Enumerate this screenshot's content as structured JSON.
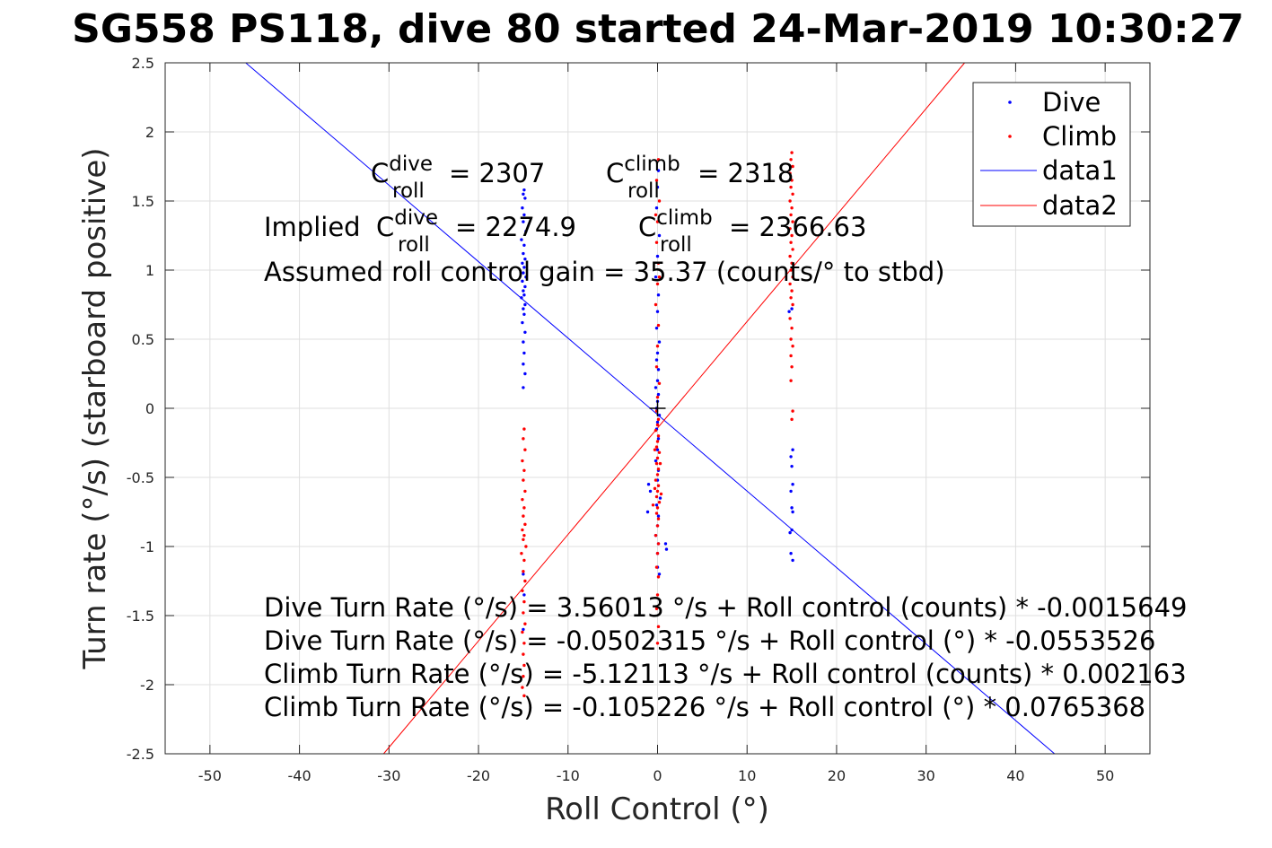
{
  "chart_data": {
    "type": "scatter",
    "title": "SG558 PS118, dive 80 started 24-Mar-2019 10:30:27",
    "xlabel": "Roll Control (°)",
    "ylabel": "Turn rate (°/s) (starboard positive)",
    "xlim": [
      -55,
      55
    ],
    "ylim": [
      -2.5,
      2.5
    ],
    "x_ticks": [
      "-50",
      "-40",
      "-30",
      "-20",
      "-10",
      "0",
      "10",
      "20",
      "30",
      "40",
      "50"
    ],
    "y_ticks": [
      "2.5",
      "2",
      "1.5",
      "1",
      "0.5",
      "0",
      "-0.5",
      "-1",
      "-1.5",
      "-2",
      "-2.5"
    ],
    "grid": true,
    "legend_position": "top-right",
    "series": [
      {
        "name": "Dive",
        "style": "points",
        "color": "#0000ff",
        "points": [
          [
            -14.9,
            1.58
          ],
          [
            -15.0,
            1.55
          ],
          [
            -14.8,
            1.52
          ],
          [
            -15.1,
            1.45
          ],
          [
            -14.9,
            1.4
          ],
          [
            -15.0,
            1.35
          ],
          [
            -14.7,
            1.28
          ],
          [
            -15.2,
            1.22
          ],
          [
            -14.9,
            1.18
          ],
          [
            -15.0,
            1.12
          ],
          [
            -14.8,
            1.08
          ],
          [
            -15.1,
            1.05
          ],
          [
            -14.9,
            1.02
          ],
          [
            -15.0,
            0.98
          ],
          [
            -14.7,
            0.95
          ],
          [
            -15.1,
            0.92
          ],
          [
            -14.8,
            0.88
          ],
          [
            -15.0,
            0.85
          ],
          [
            -14.9,
            0.82
          ],
          [
            -15.2,
            0.8
          ],
          [
            -14.8,
            0.75
          ],
          [
            -15.0,
            0.72
          ],
          [
            -14.9,
            0.68
          ],
          [
            -15.1,
            0.62
          ],
          [
            -14.8,
            0.55
          ],
          [
            -15.0,
            0.48
          ],
          [
            -14.9,
            0.4
          ],
          [
            -15.0,
            0.32
          ],
          [
            -14.8,
            0.25
          ],
          [
            -15.0,
            0.15
          ],
          [
            -15.0,
            -1.2
          ],
          [
            -14.9,
            -1.35
          ],
          [
            -15.0,
            -1.6
          ],
          [
            0.1,
            1.72
          ],
          [
            0.0,
            1.6
          ],
          [
            -0.1,
            1.45
          ],
          [
            0.2,
            1.25
          ],
          [
            0.0,
            1.1
          ],
          [
            -0.2,
            0.95
          ],
          [
            0.1,
            0.82
          ],
          [
            0.0,
            0.7
          ],
          [
            -0.1,
            0.58
          ],
          [
            0.2,
            0.48
          ],
          [
            0.0,
            0.4
          ],
          [
            -0.1,
            0.35
          ],
          [
            0.1,
            0.28
          ],
          [
            0.0,
            0.2
          ],
          [
            -0.2,
            0.15
          ],
          [
            0.1,
            0.1
          ],
          [
            0.0,
            0.05
          ],
          [
            -0.1,
            0.0
          ],
          [
            0.2,
            -0.05
          ],
          [
            0.0,
            -0.1
          ],
          [
            -0.1,
            -0.15
          ],
          [
            0.1,
            -0.22
          ],
          [
            0.0,
            -0.3
          ],
          [
            -0.2,
            -0.38
          ],
          [
            0.1,
            -0.45
          ],
          [
            0.0,
            -0.52
          ],
          [
            -1.0,
            -0.55
          ],
          [
            -0.8,
            -0.6
          ],
          [
            0.3,
            -0.65
          ],
          [
            -0.1,
            -0.7
          ],
          [
            0.1,
            -0.78
          ],
          [
            0.0,
            -0.85
          ],
          [
            -0.2,
            -0.92
          ],
          [
            0.1,
            -0.98
          ],
          [
            0.0,
            -1.05
          ],
          [
            1.0,
            -1.02
          ],
          [
            0.9,
            -0.98
          ],
          [
            -1.1,
            -0.75
          ],
          [
            0.0,
            -1.15
          ],
          [
            0.2,
            -1.2
          ],
          [
            15.1,
            -0.3
          ],
          [
            14.9,
            -0.35
          ],
          [
            15.0,
            -0.42
          ],
          [
            15.1,
            -0.55
          ],
          [
            14.9,
            -0.6
          ],
          [
            15.0,
            -0.72
          ],
          [
            15.1,
            -0.75
          ],
          [
            14.8,
            -0.9
          ],
          [
            15.0,
            -0.88
          ],
          [
            14.9,
            -1.05
          ],
          [
            15.1,
            -1.1
          ],
          [
            14.7,
            0.7
          ],
          [
            15.0,
            0.72
          ]
        ]
      },
      {
        "name": "Climb",
        "style": "points",
        "color": "#ff0000",
        "points": [
          [
            -14.9,
            -0.15
          ],
          [
            -15.0,
            -0.22
          ],
          [
            -14.8,
            -0.3
          ],
          [
            -15.1,
            -0.38
          ],
          [
            -14.9,
            -0.45
          ],
          [
            -15.0,
            -0.52
          ],
          [
            -14.8,
            -0.6
          ],
          [
            -15.1,
            -0.66
          ],
          [
            -14.9,
            -0.72
          ],
          [
            -15.0,
            -0.78
          ],
          [
            -14.8,
            -0.84
          ],
          [
            -15.1,
            -0.88
          ],
          [
            -14.9,
            -0.92
          ],
          [
            -15.0,
            -0.95
          ],
          [
            -14.7,
            -1.0
          ],
          [
            -15.2,
            -1.05
          ],
          [
            -14.9,
            -1.1
          ],
          [
            -15.0,
            -1.18
          ],
          [
            -14.8,
            -1.25
          ],
          [
            -15.1,
            -1.32
          ],
          [
            -14.9,
            -1.4
          ],
          [
            -15.0,
            -1.48
          ],
          [
            -14.8,
            -1.56
          ],
          [
            -15.1,
            -1.62
          ],
          [
            -14.9,
            -1.7
          ],
          [
            -15.0,
            -1.78
          ],
          [
            -14.9,
            -1.86
          ],
          [
            -15.0,
            -1.94
          ],
          [
            -15.1,
            -2.02
          ],
          [
            -14.9,
            -2.08
          ],
          [
            0.1,
            1.8
          ],
          [
            -0.1,
            1.65
          ],
          [
            0.2,
            1.5
          ],
          [
            0.0,
            1.35
          ],
          [
            -0.1,
            1.2
          ],
          [
            0.1,
            1.05
          ],
          [
            0.0,
            0.9
          ],
          [
            -0.2,
            0.75
          ],
          [
            0.1,
            0.6
          ],
          [
            0.0,
            0.45
          ],
          [
            -0.1,
            0.3
          ],
          [
            0.2,
            0.18
          ],
          [
            0.0,
            0.08
          ],
          [
            -0.1,
            -0.02
          ],
          [
            0.1,
            -0.08
          ],
          [
            0.0,
            -0.12
          ],
          [
            -0.2,
            -0.16
          ],
          [
            0.1,
            -0.2
          ],
          [
            0.0,
            -0.24
          ],
          [
            -0.1,
            -0.28
          ],
          [
            0.2,
            -0.32
          ],
          [
            0.0,
            -0.36
          ],
          [
            -0.1,
            -0.4
          ],
          [
            0.1,
            -0.44
          ],
          [
            0.0,
            -0.48
          ],
          [
            -0.2,
            -0.52
          ],
          [
            0.1,
            -0.56
          ],
          [
            0.0,
            -0.6
          ],
          [
            -0.1,
            -0.64
          ],
          [
            0.2,
            -0.68
          ],
          [
            0.0,
            -0.72
          ],
          [
            -0.1,
            -0.76
          ],
          [
            0.1,
            -0.8
          ],
          [
            0.0,
            -0.85
          ],
          [
            -0.2,
            -0.92
          ],
          [
            0.1,
            -0.98
          ],
          [
            0.0,
            -1.05
          ],
          [
            -0.1,
            -1.15
          ],
          [
            0.1,
            -1.22
          ],
          [
            0.0,
            -1.35
          ],
          [
            -0.1,
            -1.45
          ],
          [
            0.1,
            -1.58
          ],
          [
            0.0,
            -1.7
          ],
          [
            -0.3,
            -0.58
          ],
          [
            0.4,
            -0.62
          ],
          [
            -0.5,
            -0.7
          ],
          [
            0.3,
            -0.4
          ],
          [
            -0.3,
            -0.3
          ],
          [
            0.2,
            0.95
          ],
          [
            -0.2,
            1.4
          ],
          [
            15.0,
            1.85
          ],
          [
            14.9,
            1.8
          ],
          [
            15.1,
            1.75
          ],
          [
            14.8,
            1.7
          ],
          [
            15.0,
            1.65
          ],
          [
            14.9,
            1.6
          ],
          [
            15.1,
            1.55
          ],
          [
            14.8,
            1.5
          ],
          [
            15.0,
            1.45
          ],
          [
            14.9,
            1.4
          ],
          [
            15.1,
            1.35
          ],
          [
            14.8,
            1.3
          ],
          [
            15.0,
            1.25
          ],
          [
            14.9,
            1.2
          ],
          [
            15.1,
            1.15
          ],
          [
            14.8,
            1.1
          ],
          [
            15.0,
            1.05
          ],
          [
            14.9,
            1.0
          ],
          [
            15.1,
            0.95
          ],
          [
            14.8,
            0.9
          ],
          [
            15.0,
            0.85
          ],
          [
            14.9,
            0.8
          ],
          [
            15.1,
            0.75
          ],
          [
            14.8,
            0.65
          ],
          [
            15.0,
            0.58
          ],
          [
            14.9,
            0.5
          ],
          [
            15.1,
            0.45
          ],
          [
            14.9,
            0.38
          ],
          [
            15.0,
            0.3
          ],
          [
            14.9,
            0.2
          ],
          [
            15.1,
            -0.02
          ],
          [
            15.0,
            -0.08
          ]
        ]
      },
      {
        "name": "data1",
        "style": "line",
        "color": "#0000ff",
        "x": [
          -46,
          44.35
        ],
        "y": [
          2.5,
          -2.5
        ]
      },
      {
        "name": "data2",
        "style": "line",
        "color": "#ff0000",
        "x": [
          -30.6,
          34.3
        ],
        "y": [
          -2.5,
          2.5
        ]
      }
    ],
    "marker": {
      "x": 0,
      "y": 0,
      "symbol": "+"
    },
    "annotations": {
      "c_dive": {
        "base": "C",
        "sup": "dive",
        "sub": "roll",
        "value": "= 2307"
      },
      "c_climb": {
        "base": "C",
        "sup": "climb",
        "sub": "roll",
        "value": "= 2318"
      },
      "implied_prefix": "Implied ",
      "implied_dive": {
        "base": "C",
        "sup": "dive",
        "sub": "roll",
        "value": "= 2274.9"
      },
      "implied_climb": {
        "base": "C",
        "sup": "climb",
        "sub": "roll",
        "value": "= 2366.63"
      },
      "gain": "Assumed roll control gain = 35.37 (counts/° to stbd)",
      "eq1": "Dive Turn Rate (°/s) = 3.56013 °/s + Roll control (counts) * -0.0015649",
      "eq2": "Dive Turn Rate (°/s) = -0.0502315 °/s + Roll control (°) * -0.0553526",
      "eq3": "Climb Turn Rate (°/s) = -5.12113 °/s + Roll control (counts) * 0.002163",
      "eq4": "Climb Turn Rate (°/s) = -0.105226 °/s + Roll control (°) * 0.0765368"
    }
  }
}
